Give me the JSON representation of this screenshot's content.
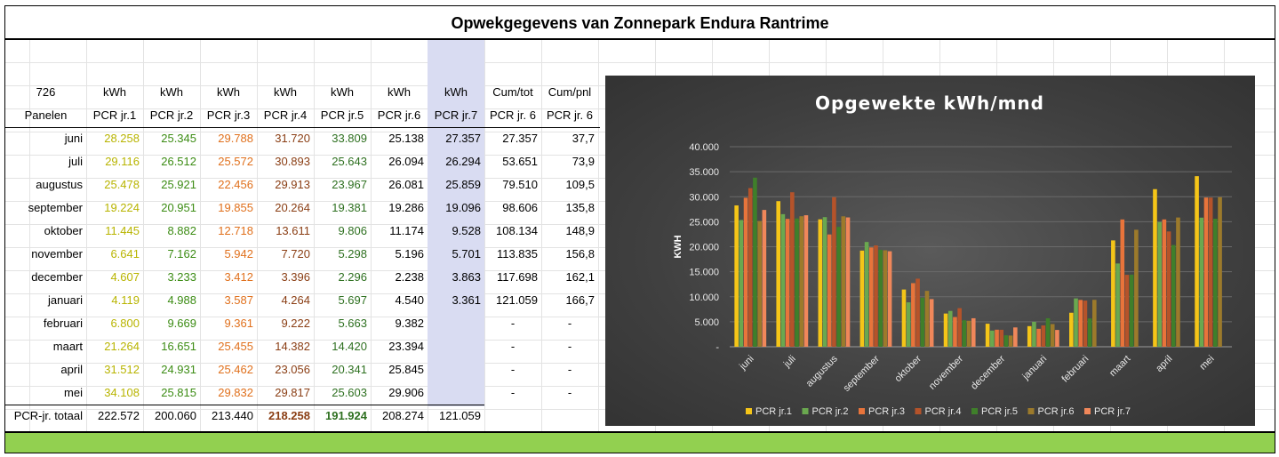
{
  "title": "Opwekgegevens van Zonnepark Endura Rantrime",
  "header_row1": [
    "726",
    "kWh",
    "kWh",
    "kWh",
    "kWh",
    "kWh",
    "kWh",
    "kWh",
    "Cum/tot",
    "Cum/pnl"
  ],
  "header_row2": [
    "Panelen",
    "PCR jr.1",
    "PCR jr.2",
    "PCR jr.3",
    "PCR jr.4",
    "PCR jr.5",
    "PCR jr.6",
    "PCR jr.7",
    "PCR jr. 6",
    "PCR jr. 6"
  ],
  "rows": [
    [
      "juni",
      "28.258",
      "25.345",
      "29.788",
      "31.720",
      "33.809",
      "25.138",
      "27.357",
      "27.357",
      "37,7"
    ],
    [
      "juli",
      "29.116",
      "26.512",
      "25.572",
      "30.893",
      "25.643",
      "26.094",
      "26.294",
      "53.651",
      "73,9"
    ],
    [
      "augustus",
      "25.478",
      "25.921",
      "22.456",
      "29.913",
      "23.967",
      "26.081",
      "25.859",
      "79.510",
      "109,5"
    ],
    [
      "september",
      "19.224",
      "20.951",
      "19.855",
      "20.264",
      "19.381",
      "19.286",
      "19.096",
      "98.606",
      "135,8"
    ],
    [
      "oktober",
      "11.445",
      "8.882",
      "12.718",
      "13.611",
      "9.806",
      "11.174",
      "9.528",
      "108.134",
      "148,9"
    ],
    [
      "november",
      "6.641",
      "7.162",
      "5.942",
      "7.720",
      "5.298",
      "5.196",
      "5.701",
      "113.835",
      "156,8"
    ],
    [
      "december",
      "4.607",
      "3.233",
      "3.412",
      "3.396",
      "2.296",
      "2.238",
      "3.863",
      "117.698",
      "162,1"
    ],
    [
      "januari",
      "4.119",
      "4.988",
      "3.587",
      "4.264",
      "5.697",
      "4.540",
      "3.361",
      "121.059",
      "166,7"
    ],
    [
      "februari",
      "6.800",
      "9.669",
      "9.361",
      "9.222",
      "5.663",
      "9.382",
      "",
      "-",
      "-"
    ],
    [
      "maart",
      "21.264",
      "16.651",
      "25.455",
      "14.382",
      "14.420",
      "23.394",
      "",
      "-",
      "-"
    ],
    [
      "april",
      "31.512",
      "24.931",
      "25.462",
      "23.056",
      "20.341",
      "25.845",
      "",
      "-",
      "-"
    ],
    [
      "mei",
      "34.108",
      "25.815",
      "29.832",
      "29.817",
      "25.603",
      "29.906",
      "",
      "-",
      "-"
    ]
  ],
  "total_row": [
    "PCR-jr. totaal",
    "222.572",
    "200.060",
    "213.440",
    "218.258",
    "191.924",
    "208.274",
    "121.059"
  ],
  "colors": {
    "pcr1": "#f5c518",
    "pcr2": "#6aa84f",
    "pcr3": "#e8743b",
    "pcr4": "#b5532a",
    "pcr5": "#3f7f2a",
    "pcr6": "#9c7a2b",
    "pcr7": "#f0875a",
    "highlight_column": "#d9dcf2",
    "footer_bar": "#92d050"
  },
  "chart_data": {
    "type": "bar",
    "title": "Opgewekte kWh/mnd",
    "ylabel": "KWH",
    "xlabel": "",
    "ylim": [
      0,
      40000
    ],
    "yticks": [
      "-",
      "5.000",
      "10.000",
      "15.000",
      "20.000",
      "25.000",
      "30.000",
      "35.000",
      "40.000"
    ],
    "categories": [
      "juni",
      "juli",
      "augustus",
      "september",
      "oktober",
      "november",
      "december",
      "januari",
      "februari",
      "maart",
      "april",
      "mei"
    ],
    "legend_position": "bottom",
    "series": [
      {
        "name": "PCR jr.1",
        "values": [
          28258,
          29116,
          25478,
          19224,
          11445,
          6641,
          4607,
          4119,
          6800,
          21264,
          31512,
          34108
        ]
      },
      {
        "name": "PCR jr.2",
        "values": [
          25345,
          26512,
          25921,
          20951,
          8882,
          7162,
          3233,
          4988,
          9669,
          16651,
          24931,
          25815
        ]
      },
      {
        "name": "PCR jr.3",
        "values": [
          29788,
          25572,
          22456,
          19855,
          12718,
          5942,
          3412,
          3587,
          9361,
          25455,
          25462,
          29832
        ]
      },
      {
        "name": "PCR jr.4",
        "values": [
          31720,
          30893,
          29913,
          20264,
          13611,
          7720,
          3396,
          4264,
          9222,
          14382,
          23056,
          29817
        ]
      },
      {
        "name": "PCR jr.5",
        "values": [
          33809,
          25643,
          23967,
          19381,
          9806,
          5298,
          2296,
          5697,
          5663,
          14420,
          20341,
          25603
        ]
      },
      {
        "name": "PCR jr.6",
        "values": [
          25138,
          26094,
          26081,
          19286,
          11174,
          5196,
          2238,
          4540,
          9382,
          23394,
          25845,
          29906
        ]
      },
      {
        "name": "PCR jr.7",
        "values": [
          27357,
          26294,
          25859,
          19096,
          9528,
          5701,
          3863,
          3361,
          null,
          null,
          null,
          null
        ]
      }
    ]
  }
}
